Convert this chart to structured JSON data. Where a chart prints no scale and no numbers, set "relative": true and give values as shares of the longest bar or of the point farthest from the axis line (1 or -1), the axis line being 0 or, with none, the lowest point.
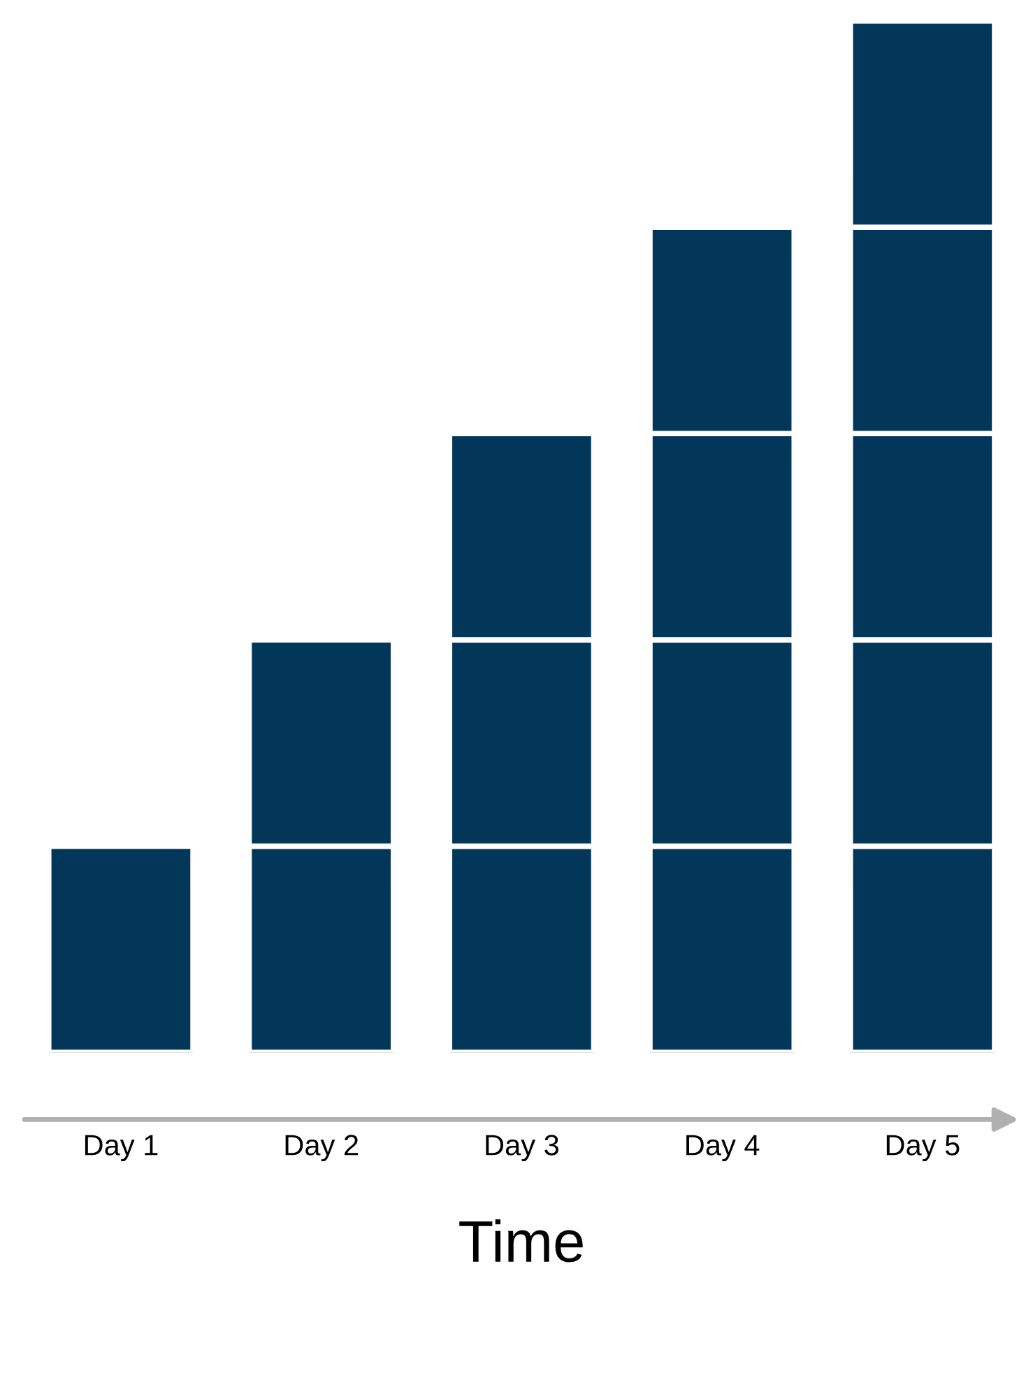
{
  "chart_data": {
    "type": "bar",
    "stacked": true,
    "relative": true,
    "xlabel": "Time",
    "categories": [
      "Day 1",
      "Day 2",
      "Day 3",
      "Day 4",
      "Day 5"
    ],
    "series": [
      {
        "color": "#03375a",
        "values": [
          0.2,
          0.2,
          0.2,
          0.2,
          0.2
        ]
      },
      {
        "color": "#03375a",
        "values": [
          null,
          0.2,
          0.2,
          0.2,
          0.2
        ]
      },
      {
        "color": "#03375a",
        "values": [
          null,
          null,
          0.2,
          0.2,
          0.2
        ]
      },
      {
        "color": "#03375a",
        "values": [
          null,
          null,
          null,
          0.2,
          0.2
        ]
      },
      {
        "color": "#03375a",
        "values": [
          null,
          null,
          null,
          null,
          0.2
        ]
      }
    ],
    "grid": false,
    "legend": false
  }
}
